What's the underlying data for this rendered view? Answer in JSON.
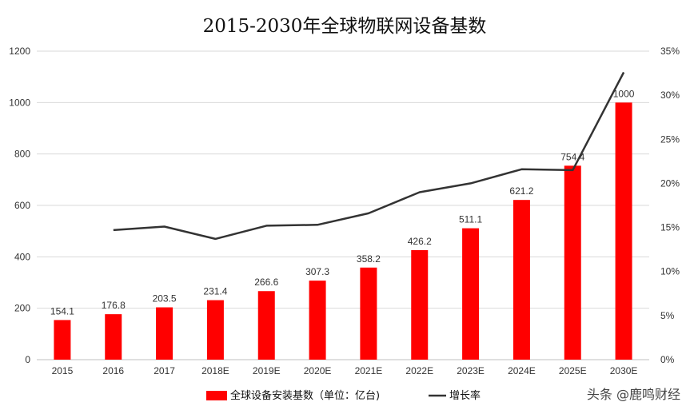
{
  "chart_data": {
    "type": "bar",
    "title": "2015-2030年全球物联网设备基数",
    "categories": [
      "2015",
      "2016",
      "2017",
      "2018E",
      "2019E",
      "2020E",
      "2021E",
      "2022E",
      "2023E",
      "2024E",
      "2025E",
      "2030E"
    ],
    "series": [
      {
        "name": "全球设备安装基数（单位：亿台)",
        "type": "bar",
        "axis": "left",
        "color": "#ff0000",
        "values": [
          154.1,
          176.8,
          203.5,
          231.4,
          266.6,
          307.3,
          358.2,
          426.2,
          511.1,
          621.2,
          754.4,
          1000
        ],
        "labels": [
          "154.1",
          "176.8",
          "203.5",
          "231.4",
          "266.6",
          "307.3",
          "358.2",
          "426.2",
          "511.1",
          "621.2",
          "754.4",
          "1000"
        ]
      },
      {
        "name": "增长率",
        "type": "line",
        "axis": "right",
        "color": "#333333",
        "values": [
          null,
          0.147,
          0.151,
          0.137,
          0.152,
          0.153,
          0.166,
          0.19,
          0.2,
          0.216,
          0.215,
          0.326
        ]
      }
    ],
    "y_left": {
      "min": 0,
      "max": 1200,
      "ticks": [
        "0",
        "200",
        "400",
        "600",
        "800",
        "1000",
        "1200"
      ]
    },
    "y_right": {
      "min": 0,
      "max": 0.35,
      "ticks": [
        "0%",
        "5%",
        "10%",
        "15%",
        "20%",
        "25%",
        "30%",
        "35%"
      ]
    },
    "grid": true,
    "legend_position": "bottom"
  },
  "watermark": "头条 @鹿鸣财经"
}
